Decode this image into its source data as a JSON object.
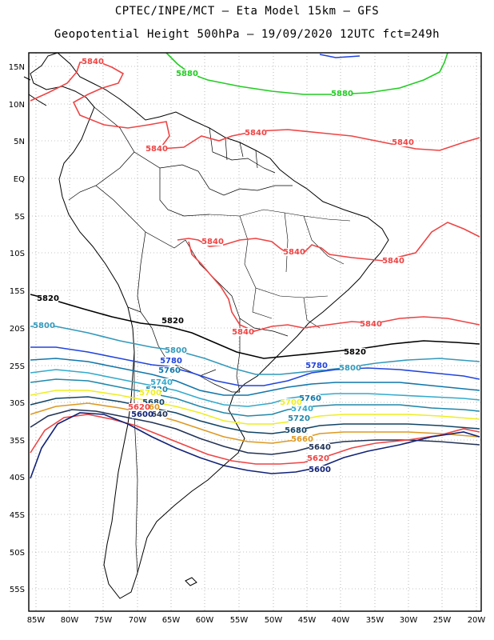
{
  "header": {
    "title_line1": "CPTEC/INPE/MCT –  Eta Model 15km – GFS",
    "title_line2": "Geopotential Height 500hPa – 19/09/2020 12UTC fct=249h"
  },
  "axes": {
    "lon_labels": [
      "85W",
      "80W",
      "75W",
      "70W",
      "65W",
      "60W",
      "55W",
      "50W",
      "45W",
      "40W",
      "35W",
      "30W",
      "25W",
      "20W"
    ],
    "lat_labels": [
      "15N",
      "10N",
      "5N",
      "EQ",
      "5S",
      "10S",
      "15S",
      "20S",
      "25S",
      "30S",
      "35S",
      "40S",
      "45S",
      "50S",
      "55S"
    ]
  },
  "contours": [
    {
      "id": "c5880",
      "value": "5880",
      "color": "#22cc22",
      "labels": [
        "5880",
        "5880"
      ]
    },
    {
      "id": "c5840n",
      "value": "5840",
      "color": "#ee4444",
      "labels": [
        "5840",
        "5840",
        "5840",
        "5840"
      ]
    },
    {
      "id": "c5840a",
      "value": "5840",
      "color": "#ee4444",
      "labels": [
        "5840",
        "5840",
        "5840",
        "5840",
        "5840"
      ]
    },
    {
      "id": "c5820",
      "value": "5820",
      "color": "#000000",
      "labels": [
        "5820",
        "5820",
        "5820"
      ]
    },
    {
      "id": "c5800",
      "value": "5800",
      "color": "#3399bb",
      "labels": [
        "5800",
        "5800",
        "5800"
      ]
    },
    {
      "id": "c5780",
      "value": "5780",
      "color": "#2244dd",
      "labels": [
        "5780",
        "5780"
      ]
    },
    {
      "id": "c5760",
      "value": "5760",
      "color": "#1177aa",
      "labels": [
        "5760",
        "5760"
      ]
    },
    {
      "id": "c5740",
      "value": "5740",
      "color": "#33aacc",
      "labels": [
        "5740",
        "5740"
      ]
    },
    {
      "id": "c5720",
      "value": "5720",
      "color": "#2288aa",
      "labels": [
        "5720",
        "5720"
      ]
    },
    {
      "id": "c5700",
      "value": "5700",
      "color": "#eeee22",
      "labels": [
        "5700",
        "5700"
      ]
    },
    {
      "id": "c5680",
      "value": "5680",
      "color": "#114466",
      "labels": [
        "5680",
        "5680"
      ]
    },
    {
      "id": "c5660",
      "value": "5660",
      "color": "#dd9922",
      "labels": [
        "5660",
        "5660"
      ]
    },
    {
      "id": "c5640",
      "value": "5640",
      "color": "#223355",
      "labels": [
        "5640",
        "5640"
      ]
    },
    {
      "id": "c5620",
      "value": "5620",
      "color": "#ee4444",
      "labels": [
        "5620",
        "5620"
      ]
    },
    {
      "id": "c5600",
      "value": "5600",
      "color": "#112277",
      "labels": [
        "5600",
        "5600"
      ]
    }
  ],
  "colors": {
    "frame": "#000000",
    "land": "#000000",
    "grid": "#888888"
  }
}
